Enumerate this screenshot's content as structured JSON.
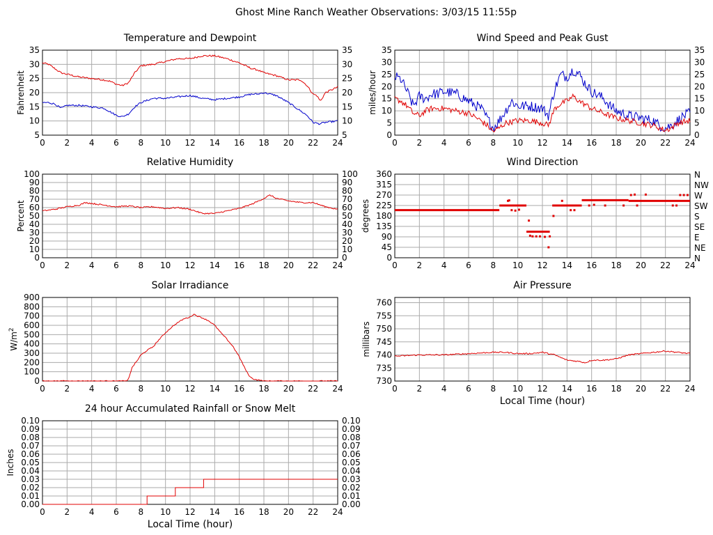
{
  "page": {
    "title": "Ghost Mine Ranch Weather Observations: 3/03/15 11:55p"
  },
  "colors": {
    "red": "#e00000",
    "blue": "#0000cc",
    "grid": "#aaaaaa",
    "frame": "#000000"
  },
  "chart_data": [
    {
      "id": "temp",
      "type": "line",
      "title": "Temperature and Dewpoint",
      "ylabel": "Fahrenheit",
      "xlim": [
        0,
        24
      ],
      "ylim": [
        5,
        35
      ],
      "xticks": [
        0,
        2,
        4,
        6,
        8,
        10,
        12,
        14,
        16,
        18,
        20,
        22,
        24
      ],
      "yticks": [
        5,
        10,
        15,
        20,
        25,
        30,
        35
      ],
      "right_axis": true,
      "grid": true,
      "series": [
        {
          "color": "#e00000",
          "noise": 0.3,
          "x": [
            0,
            0.5,
            1,
            1.5,
            2,
            3,
            4,
            5,
            5.5,
            6,
            6.5,
            7,
            7.5,
            8,
            9,
            10,
            11,
            12,
            13,
            14,
            15,
            16,
            17,
            17.5,
            18,
            19,
            20,
            21,
            21.5,
            22,
            22.3,
            22.6,
            23,
            23.5,
            24
          ],
          "y": [
            30.5,
            30,
            28.5,
            27,
            26.5,
            25.5,
            25,
            24.5,
            24,
            23,
            22.5,
            23.5,
            27,
            29.5,
            30,
            31,
            32,
            32,
            33,
            33,
            32,
            30.5,
            28.5,
            28,
            27,
            26,
            24.5,
            24.5,
            22.5,
            19.5,
            19,
            17,
            20,
            21,
            22
          ]
        },
        {
          "color": "#0000cc",
          "noise": 0.3,
          "x": [
            0,
            0.5,
            1,
            1.5,
            2,
            3,
            4,
            5,
            6,
            6.5,
            7,
            7.5,
            8,
            9,
            10,
            11,
            12,
            13,
            14,
            15,
            16,
            17,
            17.5,
            18,
            19,
            20,
            21,
            21.5,
            22,
            22.5,
            23,
            24
          ],
          "y": [
            16.5,
            16.5,
            16,
            14.5,
            15.5,
            15.5,
            15,
            14.5,
            12,
            11.5,
            12.5,
            15,
            16.5,
            18,
            18,
            18.5,
            19,
            18,
            17.5,
            18,
            18.5,
            19.5,
            19.5,
            20,
            19,
            16.5,
            13.5,
            12,
            9.5,
            9,
            9.5,
            10
          ]
        }
      ]
    },
    {
      "id": "wind",
      "type": "line",
      "title": "Wind Speed and Peak Gust",
      "ylabel": "miles/hour",
      "xlim": [
        0,
        24
      ],
      "ylim": [
        0,
        35
      ],
      "xticks": [
        0,
        2,
        4,
        6,
        8,
        10,
        12,
        14,
        16,
        18,
        20,
        22,
        24
      ],
      "yticks": [
        0,
        5,
        10,
        15,
        20,
        25,
        30,
        35
      ],
      "right_axis": true,
      "grid": true,
      "series": [
        {
          "color": "#0000cc",
          "noise": 2.2,
          "x": [
            0,
            0.5,
            1,
            1.5,
            2,
            2.5,
            3,
            3.5,
            4,
            5,
            6,
            7,
            7.5,
            8,
            8.5,
            9,
            9.5,
            10,
            11,
            12,
            12.5,
            13,
            13.5,
            14,
            14.5,
            15,
            15.5,
            16,
            17,
            17.5,
            18,
            19,
            20,
            21,
            21.5,
            22,
            22.5,
            23,
            23.5,
            24
          ],
          "y": [
            24,
            23,
            18,
            12,
            16,
            15,
            17,
            17,
            18,
            17,
            14,
            11,
            7,
            3,
            6,
            10,
            14,
            12,
            12,
            11,
            8,
            19,
            25,
            24,
            27,
            25,
            21,
            18,
            15,
            12,
            10,
            8,
            7,
            6,
            4,
            3,
            4,
            6,
            8,
            9
          ]
        },
        {
          "color": "#e00000",
          "noise": 1.2,
          "x": [
            0,
            0.5,
            1,
            1.5,
            2,
            2.5,
            3,
            4,
            5,
            6,
            7,
            7.5,
            8,
            8.5,
            9,
            10,
            11,
            12,
            12.5,
            13,
            13.5,
            14,
            14.5,
            15,
            16,
            17,
            18,
            19,
            20,
            21,
            22,
            22.5,
            23,
            24
          ],
          "y": [
            15,
            14,
            12,
            9,
            8,
            10,
            11,
            11,
            10,
            9,
            6,
            4,
            1.5,
            3,
            5,
            6,
            6,
            5,
            4,
            11,
            13,
            14,
            16,
            14,
            11,
            9,
            7,
            6,
            5,
            4,
            2,
            3,
            5,
            6
          ]
        }
      ]
    },
    {
      "id": "rh",
      "type": "line",
      "title": "Relative Humidity",
      "ylabel": "Percent",
      "xlim": [
        0,
        24
      ],
      "ylim": [
        0,
        100
      ],
      "xticks": [
        0,
        2,
        4,
        6,
        8,
        10,
        12,
        14,
        16,
        18,
        20,
        22,
        24
      ],
      "yticks": [
        0,
        10,
        20,
        30,
        40,
        50,
        60,
        70,
        80,
        90,
        100
      ],
      "right_axis": true,
      "grid": true,
      "series": [
        {
          "color": "#e00000",
          "noise": 0.8,
          "x": [
            0,
            1,
            2,
            3,
            3.5,
            4,
            5,
            6,
            7,
            8,
            9,
            10,
            11,
            12,
            13,
            14,
            15,
            16,
            17,
            18,
            18.5,
            19,
            20,
            21,
            22,
            23,
            24
          ],
          "y": [
            56,
            58,
            61,
            63,
            66,
            65,
            63,
            61,
            62,
            60,
            61,
            59,
            60,
            58,
            53,
            53,
            56,
            59,
            64,
            71,
            75,
            71,
            68,
            66,
            66,
            61,
            58
          ]
        }
      ]
    },
    {
      "id": "dir",
      "type": "scatter",
      "title": "Wind Direction",
      "ylabel": "degrees",
      "xlim": [
        0,
        24
      ],
      "ylim": [
        0,
        360
      ],
      "xticks": [
        0,
        2,
        4,
        6,
        8,
        10,
        12,
        14,
        16,
        18,
        20,
        22,
        24
      ],
      "yticks": [
        0,
        45,
        90,
        135,
        180,
        225,
        270,
        315,
        360
      ],
      "right_labels": [
        "N",
        "NE",
        "E",
        "SE",
        "S",
        "SW",
        "W",
        "NW",
        "N"
      ],
      "grid": true,
      "series": [
        {
          "color": "#e00000",
          "segments": [
            [
              0,
              8.5,
              205
            ],
            [
              8.5,
              10.7,
              225
            ],
            [
              10.7,
              12.6,
              112
            ],
            [
              12.8,
              15.2,
              225
            ],
            [
              15.2,
              19,
              248
            ],
            [
              19,
              24,
              245
            ]
          ],
          "x": [
            9.2,
            9.3,
            9.5,
            9.8,
            10.1,
            10.4,
            10.9,
            11.0,
            11.2,
            11.5,
            11.8,
            12.2,
            12.5,
            12.6,
            12.9,
            13.6,
            14.3,
            14.6,
            15.8,
            16.2,
            17.1,
            18.6,
            19.2,
            19.5,
            19.7,
            20.4,
            22.6,
            22.9,
            23.2,
            23.5,
            23.8
          ],
          "y": [
            245,
            247,
            205,
            203,
            207,
            225,
            160,
            95,
            92,
            92,
            92,
            90,
            45,
            92,
            180,
            245,
            205,
            205,
            225,
            228,
            225,
            225,
            270,
            272,
            225,
            272,
            225,
            225,
            270,
            270,
            270
          ]
        }
      ]
    },
    {
      "id": "solar",
      "type": "line",
      "title": "Solar Irradiance",
      "ylabel": "W/m",
      "ylabel_sup": "2",
      "xlim": [
        0,
        24
      ],
      "ylim": [
        0,
        900
      ],
      "xticks": [
        0,
        2,
        4,
        6,
        8,
        10,
        12,
        14,
        16,
        18,
        20,
        22,
        24
      ],
      "yticks": [
        0,
        100,
        200,
        300,
        400,
        500,
        600,
        700,
        800,
        900
      ],
      "right_axis": false,
      "grid": true,
      "series": [
        {
          "color": "#e00000",
          "noise": 6,
          "x": [
            0,
            6.9,
            7.0,
            7.3,
            7.7,
            8.0,
            8.5,
            9.0,
            9.5,
            10.0,
            10.5,
            11.0,
            11.5,
            12.0,
            12.3,
            12.6,
            13.0,
            13.5,
            14.0,
            14.5,
            15.0,
            15.5,
            16.0,
            16.3,
            16.6,
            16.9,
            17.2,
            17.6,
            18.0,
            24
          ],
          "y": [
            0,
            0,
            30,
            150,
            220,
            280,
            330,
            370,
            450,
            520,
            580,
            630,
            670,
            690,
            720,
            700,
            680,
            650,
            600,
            520,
            450,
            370,
            260,
            180,
            100,
            40,
            20,
            10,
            0,
            0
          ]
        }
      ]
    },
    {
      "id": "press",
      "type": "line",
      "title": "Air Pressure",
      "ylabel": "millibars",
      "xlabel": "Local Time (hour)",
      "xlim": [
        0,
        24
      ],
      "ylim": [
        730,
        762
      ],
      "xticks": [
        0,
        2,
        4,
        6,
        8,
        10,
        12,
        14,
        16,
        18,
        20,
        22,
        24
      ],
      "yticks": [
        730,
        735,
        740,
        745,
        750,
        755,
        760
      ],
      "right_axis": false,
      "grid": true,
      "series": [
        {
          "color": "#e00000",
          "noise": 0.25,
          "x": [
            0,
            2,
            4,
            6,
            8,
            9,
            10,
            11,
            12,
            13,
            13.5,
            14,
            15,
            15.5,
            16,
            17,
            18,
            19,
            20,
            21,
            22,
            23,
            24
          ],
          "y": [
            739.5,
            740,
            740,
            740.5,
            741,
            741,
            740.5,
            740.5,
            741,
            740,
            739,
            738,
            737.5,
            737,
            738,
            738,
            738.5,
            740,
            740.5,
            741,
            741.5,
            741,
            740.5
          ]
        }
      ]
    },
    {
      "id": "rain",
      "type": "line",
      "title": "24 hour Accumulated Rainfall or Snow Melt",
      "ylabel": "Inches",
      "xlabel": "Local Time (hour)",
      "xlim": [
        0,
        24
      ],
      "ylim": [
        0,
        0.1
      ],
      "xticks": [
        0,
        2,
        4,
        6,
        8,
        10,
        12,
        14,
        16,
        18,
        20,
        22,
        24
      ],
      "yticks": [
        0,
        0.01,
        0.02,
        0.03,
        0.04,
        0.05,
        0.06,
        0.07,
        0.08,
        0.09,
        0.1
      ],
      "decimals": 2,
      "right_axis": true,
      "grid": true,
      "series": [
        {
          "color": "#e00000",
          "step": true,
          "x": [
            0,
            8.5,
            8.5,
            10.8,
            10.8,
            13.1,
            13.1,
            24
          ],
          "y": [
            0,
            0,
            0.01,
            0.01,
            0.02,
            0.02,
            0.03,
            0.03
          ]
        }
      ]
    }
  ]
}
